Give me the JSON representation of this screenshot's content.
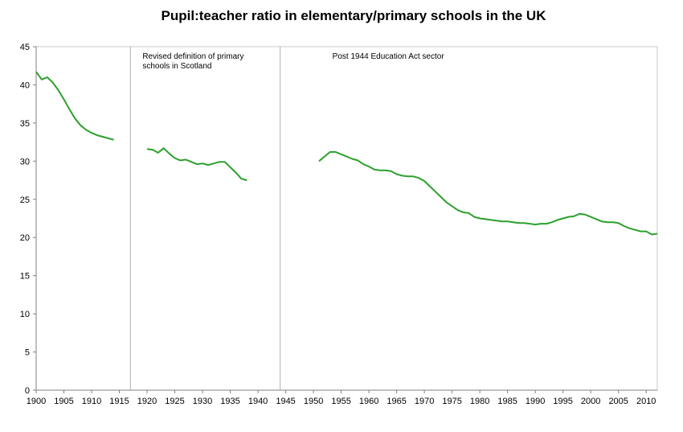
{
  "chart_data": {
    "type": "line",
    "title": "Pupil:teacher ratio in elementary/primary schools in the UK",
    "xlabel": "",
    "ylabel": "",
    "xlim": [
      1900,
      2012
    ],
    "ylim": [
      0,
      45
    ],
    "x_ticks": [
      1900,
      1905,
      1910,
      1915,
      1920,
      1925,
      1930,
      1935,
      1940,
      1945,
      1950,
      1955,
      1960,
      1965,
      1970,
      1975,
      1980,
      1985,
      1990,
      1995,
      2000,
      2005,
      2010
    ],
    "y_ticks": [
      0,
      5,
      10,
      15,
      20,
      25,
      30,
      35,
      40,
      45
    ],
    "grid": false,
    "line_color": "#2ca02c",
    "dividers": [
      {
        "x": 1917,
        "label": "Revised definition of primary schools in Scotland"
      },
      {
        "x": 1944,
        "label": "Post 1944 Education Act sector"
      }
    ],
    "series": [
      {
        "segments": [
          {
            "x": [
              1900,
              1901,
              1902,
              1903,
              1904,
              1905,
              1906,
              1907,
              1908,
              1909,
              1910,
              1911,
              1912,
              1913,
              1914
            ],
            "y": [
              41.7,
              40.7,
              41.0,
              40.3,
              39.3,
              38.1,
              36.8,
              35.6,
              34.7,
              34.1,
              33.7,
              33.4,
              33.2,
              33.0,
              32.8
            ]
          },
          {
            "x": [
              1920,
              1921,
              1922,
              1923,
              1924,
              1925,
              1926,
              1927,
              1928,
              1929,
              1930,
              1931,
              1932,
              1933,
              1934,
              1935,
              1936,
              1937,
              1938
            ],
            "y": [
              31.6,
              31.5,
              31.1,
              31.7,
              31.0,
              30.4,
              30.1,
              30.2,
              29.9,
              29.6,
              29.7,
              29.5,
              29.7,
              29.9,
              29.9,
              29.2,
              28.5,
              27.7,
              27.5
            ]
          },
          {
            "x": [
              1951,
              1952,
              1953,
              1954,
              1955,
              1956,
              1957,
              1958,
              1959,
              1960,
              1961,
              1962,
              1963,
              1964,
              1965,
              1966,
              1967,
              1968,
              1969,
              1970,
              1971,
              1972,
              1973,
              1974,
              1975,
              1976,
              1977,
              1978,
              1979,
              1980,
              1981,
              1982,
              1983,
              1984,
              1985,
              1986,
              1987,
              1988,
              1989,
              1990,
              1991,
              1992,
              1993,
              1994,
              1995,
              1996,
              1997,
              1998,
              1999,
              2000,
              2001,
              2002,
              2003,
              2004,
              2005,
              2006,
              2007,
              2008,
              2009,
              2010,
              2011,
              2012
            ],
            "y": [
              30.0,
              30.6,
              31.2,
              31.2,
              30.9,
              30.6,
              30.3,
              30.1,
              29.6,
              29.3,
              28.9,
              28.8,
              28.8,
              28.7,
              28.3,
              28.1,
              28.0,
              28.0,
              27.8,
              27.4,
              26.7,
              26.0,
              25.3,
              24.6,
              24.1,
              23.6,
              23.3,
              23.2,
              22.7,
              22.5,
              22.4,
              22.3,
              22.2,
              22.1,
              22.1,
              22.0,
              21.9,
              21.9,
              21.8,
              21.7,
              21.8,
              21.8,
              22.0,
              22.3,
              22.5,
              22.7,
              22.8,
              23.1,
              23.0,
              22.7,
              22.4,
              22.1,
              22.0,
              22.0,
              21.9,
              21.5,
              21.2,
              21.0,
              20.8,
              20.8,
              20.4,
              20.5
            ]
          }
        ]
      }
    ]
  }
}
